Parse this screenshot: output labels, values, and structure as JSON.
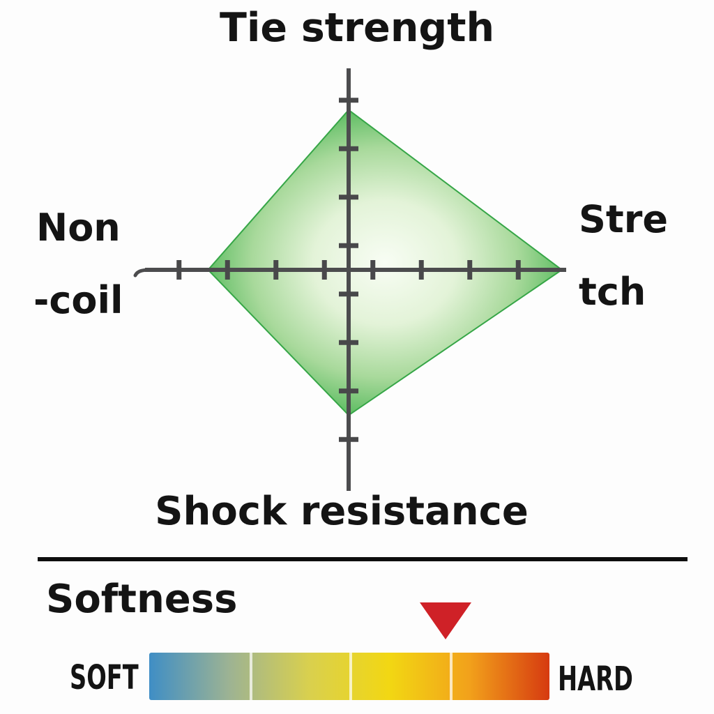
{
  "radar": {
    "title": "Tie strength",
    "left_label": [
      "Non",
      "-coil"
    ],
    "right_label": [
      "Stre",
      "tch"
    ],
    "bottom_label": "Shock resistance",
    "axis_color": "#4c4c4e",
    "area_edge_color": "#3bad4a",
    "area_center_color": "#f8fdf4"
  },
  "softness": {
    "title": "Softness",
    "min_label": "SOFT",
    "max_label": "HARD",
    "marker_color": "#cf2127",
    "divider_color": "#0e0e0e"
  },
  "chart_data": [
    {
      "type": "radar",
      "shape": "diamond",
      "title": "",
      "axes": [
        {
          "label": "Tie strength",
          "position": "top",
          "value": 3.3
        },
        {
          "label": "Stretch",
          "position": "right",
          "value": 4.4
        },
        {
          "label": "Shock resistance",
          "position": "bottom",
          "value": 3.0
        },
        {
          "label": "Non-coil",
          "position": "left",
          "value": 2.9
        }
      ],
      "axis_range": [
        0,
        4.4
      ],
      "tick_interval": 1,
      "first_tick_offset": 0.5,
      "ticks_per_half_axis": 4,
      "grid": false,
      "legend": false,
      "fill": "green-radial-gradient"
    },
    {
      "type": "scale",
      "label": "Softness",
      "min_label": "SOFT",
      "max_label": "HARD",
      "marker_position_pct": 74,
      "marker_color": "#cf2127",
      "segments": 4,
      "gradient": [
        "#3f8ec5",
        "#9db393",
        "#d9d04e",
        "#f2d713",
        "#f2a11b",
        "#d63a10"
      ]
    }
  ]
}
